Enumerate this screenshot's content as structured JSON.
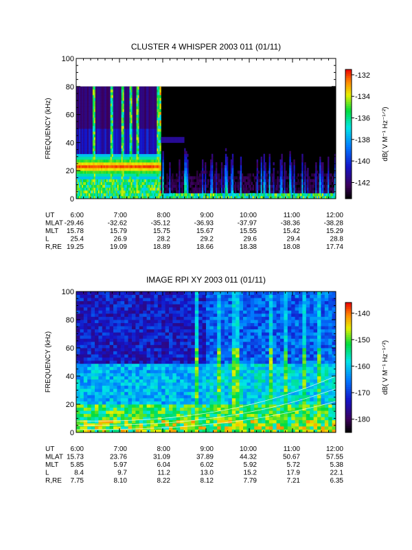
{
  "chart_data": [
    {
      "type": "heatmap",
      "title": "CLUSTER 4 WHISPER 2003 011 (01/11)",
      "ylabel": "FREQUENCY (kHz)",
      "ylim": [
        0,
        100
      ],
      "yticks": [
        "0",
        "20",
        "40",
        "60",
        "80",
        "100"
      ],
      "xticks": [
        "6:00",
        "7:00",
        "8:00",
        "9:00",
        "10:00",
        "11:00",
        "12:00"
      ],
      "data_max_frequency": 80,
      "colorbar": {
        "label": "dB( V M⁻¹ Hz⁻¹ᐟ²)",
        "range": [
          -143.5,
          -131.5
        ],
        "ticks": [
          "-132",
          "-134",
          "-136",
          "-138",
          "-140",
          "-142"
        ]
      },
      "features": {
        "plasma_line_frequency_khz": 23,
        "plasma_line_end_time": "7:55",
        "bursts": [
          "6:25",
          "6:50",
          "7:05",
          "7:15",
          "7:25"
        ]
      },
      "ephemeris": {
        "labels": [
          "UT",
          "MLAT",
          "MLT",
          "L",
          "R,RE"
        ],
        "rows": [
          [
            "6:00",
            "-29.46",
            "15.78",
            "25.4",
            "19.25"
          ],
          [
            "7:00",
            "-32.62",
            "15.79",
            "26.9",
            "19.09"
          ],
          [
            "8:00",
            "-35.12",
            "15.75",
            "28.2",
            "18.89"
          ],
          [
            "9:00",
            "-36.93",
            "15.67",
            "29.2",
            "18.66"
          ],
          [
            "10:00",
            "-37.97",
            "15.55",
            "29.6",
            "18.38"
          ],
          [
            "11:00",
            "-38.36",
            "15.42",
            "29.4",
            "18.08"
          ],
          [
            "12:00",
            "-38.28",
            "15.29",
            "28.8",
            "17.74"
          ]
        ]
      }
    },
    {
      "type": "heatmap",
      "title": "IMAGE RPI XY 2003 011 (01/11)",
      "ylabel": "FREQUENCY (kHz)",
      "ylim": [
        0,
        100
      ],
      "yticks": [
        "0",
        "20",
        "40",
        "60",
        "80",
        "100"
      ],
      "xticks": [
        "6:00",
        "7:00",
        "8:00",
        "9:00",
        "10:00",
        "11:00",
        "12:00"
      ],
      "colorbar": {
        "label": "dB( V M⁻¹ Hz⁻¹ᐟ²)",
        "range": [
          -185,
          -136
        ],
        "ticks": [
          "-140",
          "-150",
          "-160",
          "-170",
          "-180"
        ]
      },
      "ephemeris": {
        "labels": [
          "UT",
          "MLAT",
          "MLT",
          "L",
          "R,RE"
        ],
        "rows": [
          [
            "6:00",
            "15.73",
            "5.85",
            "8.4",
            "7.75"
          ],
          [
            "7:00",
            "23.76",
            "5.97",
            "9.7",
            "8.10"
          ],
          [
            "8:00",
            "31.09",
            "6.04",
            "11.2",
            "8.22"
          ],
          [
            "9:00",
            "37.89",
            "6.02",
            "13.0",
            "8.12"
          ],
          [
            "10:00",
            "44.32",
            "5.92",
            "15.2",
            "7.79"
          ],
          [
            "11:00",
            "50.67",
            "5.72",
            "17.9",
            "7.21"
          ],
          [
            "12:00",
            "57.55",
            "5.38",
            "22.1",
            "6.35"
          ]
        ]
      }
    }
  ]
}
